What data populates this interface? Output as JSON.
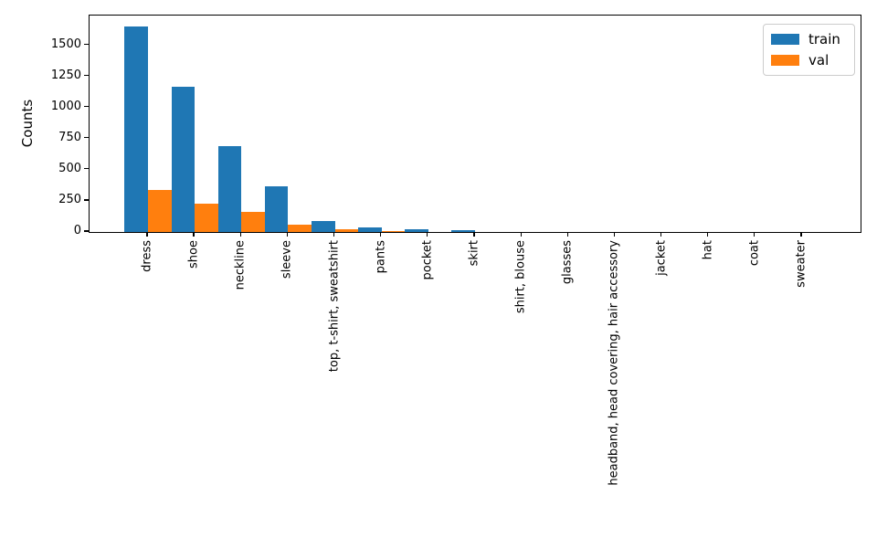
{
  "chart_data": {
    "type": "bar",
    "title": "",
    "xlabel": "",
    "ylabel": "Counts",
    "grid": false,
    "legend_position": "upper right",
    "yticks": [
      0,
      250,
      500,
      750,
      1000,
      1250,
      1500
    ],
    "ylim": [
      0,
      1740
    ],
    "categories": [
      "dress",
      "shoe",
      "neckline",
      "sleeve",
      "top, t-shirt, sweatshirt",
      "pants",
      "pocket",
      "skirt",
      "shirt, blouse",
      "glasses",
      "headband, head covering, hair accessory",
      "jacket",
      "hat",
      "coat",
      "sweater"
    ],
    "series": [
      {
        "name": "train",
        "color": "#1f77b4",
        "values": [
          1650,
          1170,
          690,
          365,
          90,
          37,
          20,
          18,
          3,
          2,
          2,
          1,
          1,
          1,
          1
        ]
      },
      {
        "name": "val",
        "color": "#ff7f0e",
        "values": [
          335,
          225,
          165,
          60,
          22,
          4,
          2,
          2,
          1,
          1,
          1,
          0,
          0,
          0,
          0
        ]
      }
    ]
  }
}
